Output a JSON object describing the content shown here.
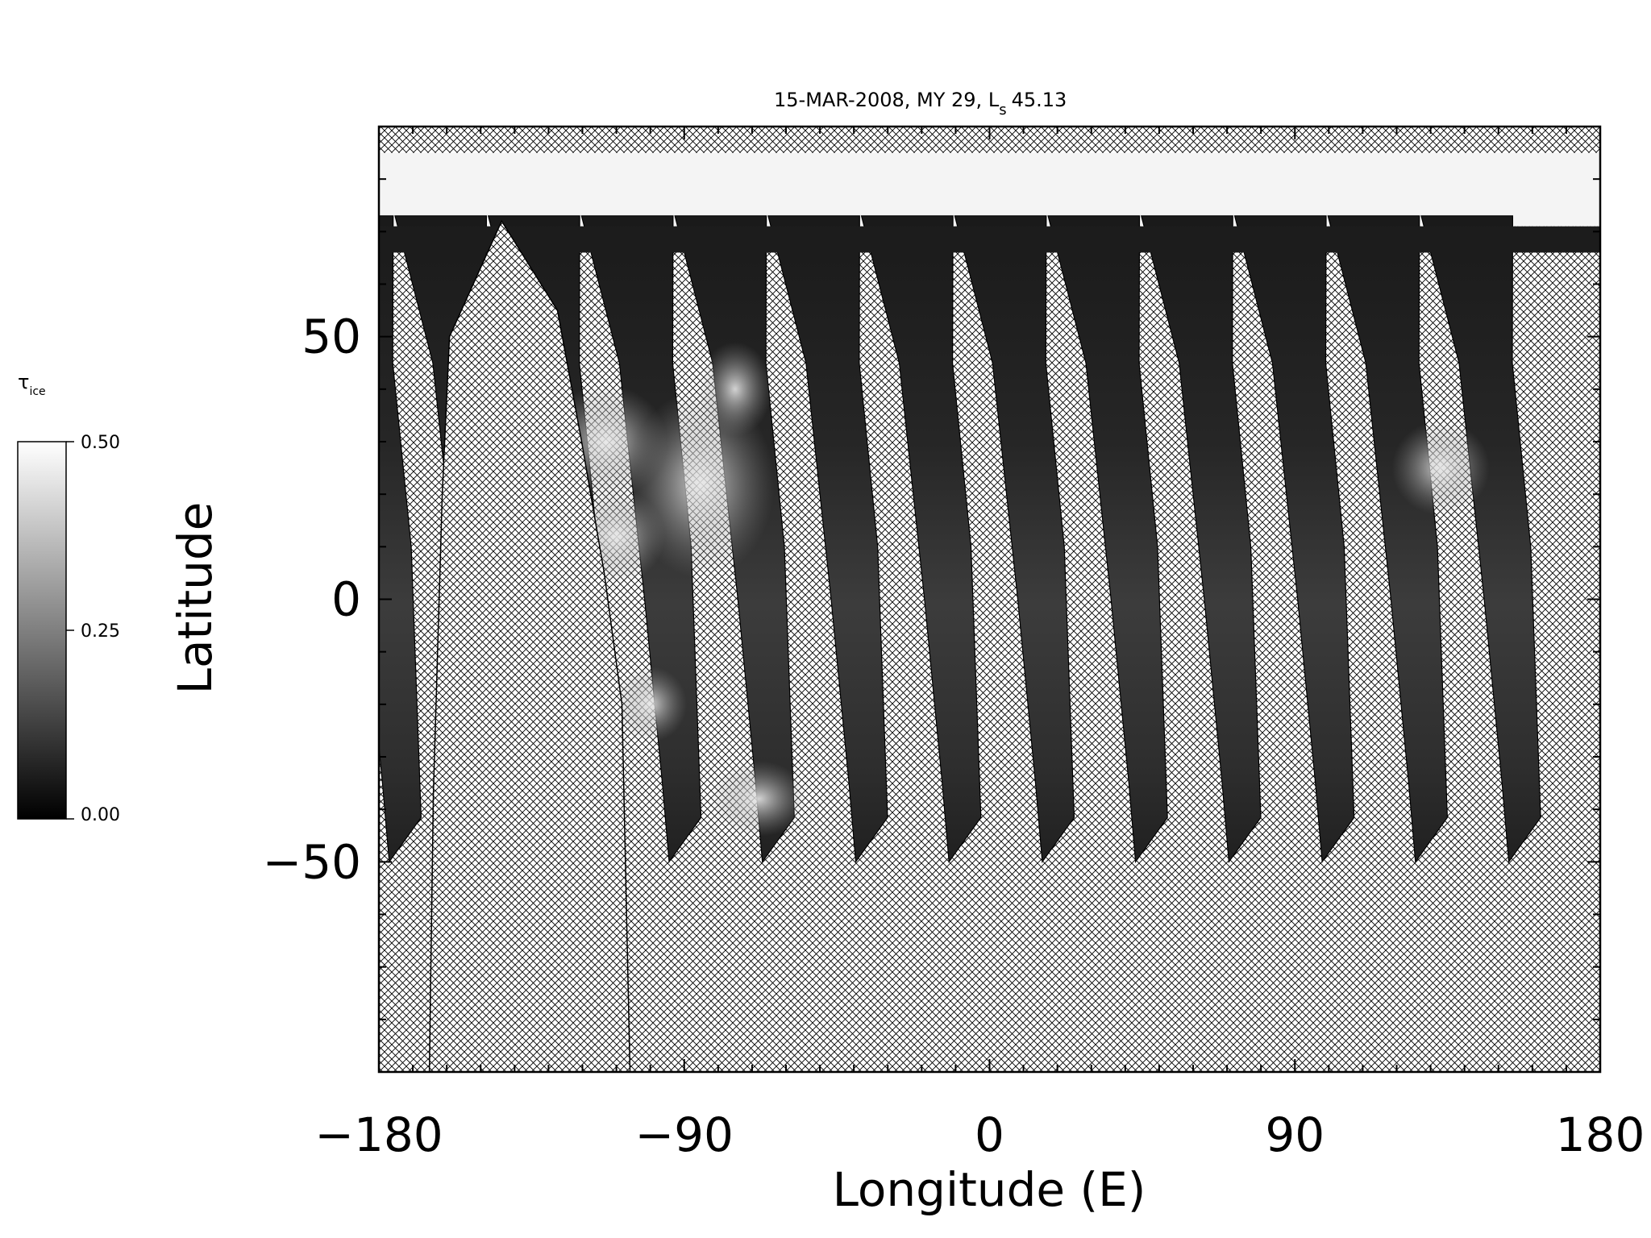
{
  "chart_data": {
    "type": "heatmap",
    "title": "15-MAR-2008, MY 29,  L",
    "title_subscript": "s",
    "title_value": "45.13",
    "xlabel": "Longitude (E)",
    "ylabel": "Latitude",
    "xlim": [
      -180,
      180
    ],
    "ylim": [
      -90,
      90
    ],
    "xticks": [
      -180,
      -90,
      0,
      90,
      180
    ],
    "yticks": [
      -50,
      0,
      50
    ],
    "grid": false,
    "colorbar": {
      "label": "τ",
      "label_subscript": "ice",
      "min": 0.0,
      "max": 0.5,
      "ticks": [
        "0.00",
        "0.25",
        "0.50"
      ],
      "colormap": "grayscale"
    },
    "no_data_pattern": "crosshatch",
    "polar_cap": {
      "lat_min": 71,
      "lat_max": 85,
      "value": 0.5
    },
    "swaths": {
      "lat_top": 72,
      "lat_bottom": -50,
      "lon_bottom_start": -178,
      "spacing_deg": 27.5,
      "count": 13,
      "notes": "Nadir-pointing orbit swaths, dark (tau ~0.05) with bright cloud patches near -110 to -80 E, 0-40 N"
    },
    "missing_gap": {
      "lon_range": [
        -158,
        -125
      ],
      "lat_top": 72,
      "lat_bottom": -40
    }
  },
  "colors": {
    "background": "#ffffff",
    "axis": "#000000",
    "hatch": "#000000",
    "cap": "#f4f4f4",
    "swath_dark": "#1e1e1e",
    "swath_mid": "#4a4a4a",
    "cloud": "#c8c8c8"
  }
}
